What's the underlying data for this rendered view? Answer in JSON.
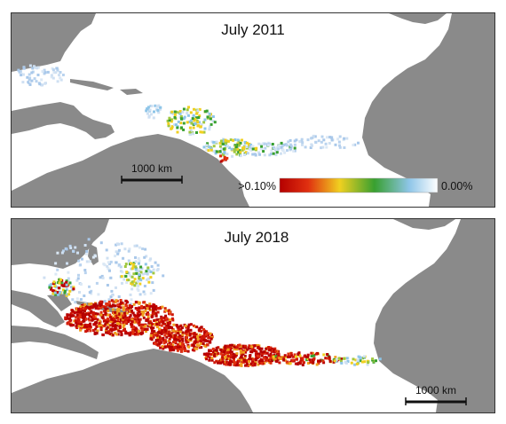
{
  "panels": [
    {
      "title": "July 2011",
      "scale_bar_label": "1000 km"
    },
    {
      "title": "July 2018",
      "scale_bar_label": "1000 km"
    }
  ],
  "colorbar": {
    "max_label": ">0.10%",
    "min_label": "0.00%",
    "stops": [
      "#b40000",
      "#e03010",
      "#f0d020",
      "#38a030",
      "#8ec5e8",
      "#ffffff"
    ]
  },
  "colors": {
    "land": "#8a8a8a",
    "ocean": "#ffffff",
    "high": "#c00000"
  }
}
